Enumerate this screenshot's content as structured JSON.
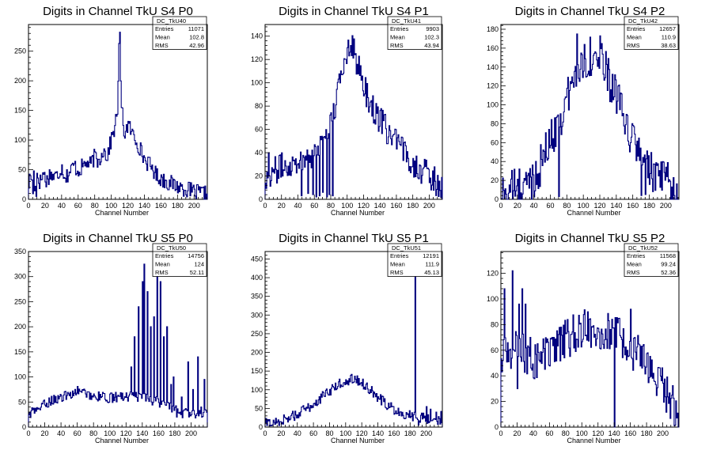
{
  "chart_data": [
    {
      "type": "histogram",
      "title": "Digits in Channel TkU S4 P0",
      "xlabel": "Channel Number",
      "ylabel": "",
      "xlim": [
        0,
        216
      ],
      "ylim": [
        0,
        295
      ],
      "xticks": [
        0,
        20,
        40,
        60,
        80,
        100,
        120,
        140,
        160,
        180,
        200
      ],
      "yticks": [
        0,
        50,
        100,
        150,
        200,
        250
      ],
      "stats": {
        "name": "DC_TkU40",
        "rows": [
          {
            "label": "Entries",
            "value": "11071"
          },
          {
            "label": "Mean",
            "value": "102.8"
          },
          {
            "label": "RMS",
            "value": "42.96"
          }
        ]
      },
      "profile": [
        [
          0,
          22
        ],
        [
          3,
          45
        ],
        [
          6,
          8
        ],
        [
          10,
          46
        ],
        [
          14,
          28
        ],
        [
          18,
          45
        ],
        [
          22,
          30
        ],
        [
          26,
          44
        ],
        [
          30,
          38
        ],
        [
          35,
          40
        ],
        [
          40,
          55
        ],
        [
          45,
          38
        ],
        [
          50,
          46
        ],
        [
          55,
          58
        ],
        [
          60,
          48
        ],
        [
          65,
          55
        ],
        [
          70,
          62
        ],
        [
          75,
          58
        ],
        [
          80,
          72
        ],
        [
          85,
          62
        ],
        [
          90,
          85
        ],
        [
          95,
          72
        ],
        [
          100,
          100
        ],
        [
          104,
          120
        ],
        [
          106,
          135
        ],
        [
          108,
          160
        ],
        [
          110,
          282
        ],
        [
          112,
          160
        ],
        [
          114,
          135
        ],
        [
          116,
          110
        ],
        [
          120,
          126
        ],
        [
          124,
          115
        ],
        [
          130,
          100
        ],
        [
          135,
          85
        ],
        [
          140,
          68
        ],
        [
          145,
          60
        ],
        [
          150,
          52
        ],
        [
          155,
          40
        ],
        [
          160,
          35
        ],
        [
          170,
          28
        ],
        [
          180,
          22
        ],
        [
          190,
          18
        ],
        [
          200,
          12
        ],
        [
          210,
          10
        ],
        [
          216,
          8
        ]
      ],
      "spikes": [
        [
          6,
          48
        ],
        [
          9,
          5
        ],
        [
          110,
          282
        ]
      ],
      "noise": 14
    },
    {
      "type": "histogram",
      "title": "Digits in Channel TkU S4 P1",
      "xlabel": "Channel Number",
      "ylabel": "",
      "xlim": [
        0,
        216
      ],
      "ylim": [
        0,
        150
      ],
      "xticks": [
        0,
        20,
        40,
        60,
        80,
        100,
        120,
        140,
        160,
        180,
        200
      ],
      "yticks": [
        0,
        20,
        40,
        60,
        80,
        100,
        120,
        140
      ],
      "stats": {
        "name": "DC_TkU41",
        "rows": [
          {
            "label": "Entries",
            "value": "9903"
          },
          {
            "label": "Mean",
            "value": "102.3"
          },
          {
            "label": "RMS",
            "value": "43.94"
          }
        ]
      },
      "profile": [
        [
          0,
          18
        ],
        [
          10,
          24
        ],
        [
          20,
          28
        ],
        [
          30,
          30
        ],
        [
          40,
          34
        ],
        [
          50,
          36
        ],
        [
          60,
          40
        ],
        [
          70,
          52
        ],
        [
          80,
          66
        ],
        [
          85,
          78
        ],
        [
          90,
          96
        ],
        [
          95,
          115
        ],
        [
          100,
          128
        ],
        [
          104,
          138
        ],
        [
          108,
          130
        ],
        [
          112,
          116
        ],
        [
          118,
          104
        ],
        [
          124,
          90
        ],
        [
          130,
          80
        ],
        [
          140,
          68
        ],
        [
          150,
          58
        ],
        [
          160,
          48
        ],
        [
          170,
          40
        ],
        [
          180,
          32
        ],
        [
          190,
          26
        ],
        [
          200,
          20
        ],
        [
          210,
          14
        ],
        [
          216,
          10
        ]
      ],
      "spikes": [
        [
          4,
          40
        ],
        [
          44,
          3
        ],
        [
          52,
          5
        ],
        [
          58,
          4
        ],
        [
          62,
          2
        ],
        [
          66,
          3
        ],
        [
          70,
          6
        ],
        [
          75,
          2
        ],
        [
          78,
          4
        ],
        [
          82,
          3
        ]
      ],
      "noise": 12
    },
    {
      "type": "histogram",
      "title": "Digits in Channel TkU S4 P2",
      "xlabel": "Channel Number",
      "ylabel": "",
      "xlim": [
        0,
        216
      ],
      "ylim": [
        0,
        185
      ],
      "xticks": [
        0,
        20,
        40,
        60,
        80,
        100,
        120,
        140,
        160,
        180,
        200
      ],
      "yticks": [
        0,
        20,
        40,
        60,
        80,
        100,
        120,
        140,
        160,
        180
      ],
      "stats": {
        "name": "DC_TkU42",
        "rows": [
          {
            "label": "Entries",
            "value": "12657"
          },
          {
            "label": "Mean",
            "value": "110.9"
          },
          {
            "label": "RMS",
            "value": "38.63"
          }
        ]
      },
      "profile": [
        [
          0,
          5
        ],
        [
          10,
          10
        ],
        [
          20,
          12
        ],
        [
          30,
          15
        ],
        [
          40,
          22
        ],
        [
          50,
          40
        ],
        [
          60,
          62
        ],
        [
          70,
          82
        ],
        [
          80,
          105
        ],
        [
          90,
          130
        ],
        [
          100,
          148
        ],
        [
          110,
          152
        ],
        [
          120,
          148
        ],
        [
          130,
          130
        ],
        [
          140,
          110
        ],
        [
          150,
          80
        ],
        [
          160,
          62
        ],
        [
          170,
          48
        ],
        [
          180,
          30
        ],
        [
          190,
          22
        ],
        [
          200,
          18
        ],
        [
          210,
          14
        ],
        [
          216,
          5
        ]
      ],
      "spikes": [
        [
          70,
          3
        ],
        [
          92,
          175
        ],
        [
          120,
          173
        ],
        [
          170,
          4
        ],
        [
          175,
          5
        ],
        [
          210,
          4
        ]
      ],
      "noise": 22
    },
    {
      "type": "histogram",
      "title": "Digits in Channel TkU S5 P0",
      "xlabel": "Channel Number",
      "ylabel": "",
      "xlim": [
        0,
        220
      ],
      "ylim": [
        0,
        350
      ],
      "xticks": [
        0,
        20,
        40,
        60,
        80,
        100,
        120,
        140,
        160,
        180,
        200
      ],
      "yticks": [
        0,
        50,
        100,
        150,
        200,
        250,
        300,
        350
      ],
      "stats": {
        "name": "DC_TkU50",
        "rows": [
          {
            "label": "Entries",
            "value": "14756"
          },
          {
            "label": "Mean",
            "value": "124"
          },
          {
            "label": "RMS",
            "value": "52.11"
          }
        ]
      },
      "profile": [
        [
          0,
          25
        ],
        [
          10,
          35
        ],
        [
          20,
          45
        ],
        [
          30,
          55
        ],
        [
          40,
          58
        ],
        [
          50,
          65
        ],
        [
          60,
          72
        ],
        [
          70,
          68
        ],
        [
          80,
          62
        ],
        [
          90,
          60
        ],
        [
          100,
          58
        ],
        [
          110,
          60
        ],
        [
          120,
          62
        ],
        [
          130,
          60
        ],
        [
          140,
          58
        ],
        [
          150,
          55
        ],
        [
          160,
          50
        ],
        [
          170,
          45
        ],
        [
          180,
          35
        ],
        [
          190,
          28
        ],
        [
          200,
          25
        ],
        [
          210,
          30
        ],
        [
          220,
          28
        ]
      ],
      "spikes": [
        [
          126,
          120
        ],
        [
          130,
          180
        ],
        [
          135,
          240
        ],
        [
          140,
          290
        ],
        [
          142,
          325
        ],
        [
          146,
          270
        ],
        [
          150,
          200
        ],
        [
          154,
          220
        ],
        [
          158,
          300
        ],
        [
          162,
          290
        ],
        [
          166,
          180
        ],
        [
          170,
          200
        ],
        [
          175,
          85
        ],
        [
          178,
          100
        ],
        [
          182,
          20
        ],
        [
          188,
          60
        ],
        [
          196,
          130
        ],
        [
          202,
          75
        ],
        [
          208,
          140
        ],
        [
          212,
          40
        ],
        [
          216,
          95
        ]
      ],
      "noise": 10
    },
    {
      "type": "histogram",
      "title": "Digits in Channel TkU S5 P1",
      "xlabel": "Channel Number",
      "ylabel": "",
      "xlim": [
        0,
        220
      ],
      "ylim": [
        0,
        470
      ],
      "xticks": [
        0,
        20,
        40,
        60,
        80,
        100,
        120,
        140,
        160,
        180,
        200
      ],
      "yticks": [
        0,
        50,
        100,
        150,
        200,
        250,
        300,
        350,
        400,
        450
      ],
      "stats": {
        "name": "DC_TkU51",
        "rows": [
          {
            "label": "Entries",
            "value": "12191"
          },
          {
            "label": "Mean",
            "value": "111.9"
          },
          {
            "label": "RMS",
            "value": "45.13"
          }
        ]
      },
      "profile": [
        [
          0,
          10
        ],
        [
          10,
          12
        ],
        [
          20,
          18
        ],
        [
          30,
          25
        ],
        [
          40,
          35
        ],
        [
          50,
          48
        ],
        [
          60,
          60
        ],
        [
          70,
          80
        ],
        [
          80,
          95
        ],
        [
          90,
          112
        ],
        [
          100,
          125
        ],
        [
          110,
          130
        ],
        [
          120,
          120
        ],
        [
          130,
          100
        ],
        [
          140,
          80
        ],
        [
          150,
          62
        ],
        [
          160,
          48
        ],
        [
          170,
          38
        ],
        [
          180,
          32
        ],
        [
          190,
          28
        ],
        [
          200,
          24
        ],
        [
          210,
          20
        ],
        [
          220,
          18
        ]
      ],
      "spikes": [
        [
          186,
          440
        ],
        [
          190,
          5
        ],
        [
          200,
          55
        ],
        [
          205,
          48
        ],
        [
          212,
          40
        ],
        [
          218,
          42
        ]
      ],
      "noise": 14
    },
    {
      "type": "histogram",
      "title": "Digits in Channel TkU S5 P2",
      "xlabel": "Channel Number",
      "ylabel": "",
      "xlim": [
        0,
        220
      ],
      "ylim": [
        0,
        137
      ],
      "xticks": [
        0,
        20,
        40,
        60,
        80,
        100,
        120,
        140,
        160,
        180,
        200
      ],
      "yticks": [
        0,
        20,
        40,
        60,
        80,
        100,
        120
      ],
      "stats": {
        "name": "DC_TkU52",
        "rows": [
          {
            "label": "Entries",
            "value": "11568"
          },
          {
            "label": "Mean",
            "value": "99.24"
          },
          {
            "label": "RMS",
            "value": "52.36"
          }
        ]
      },
      "profile": [
        [
          0,
          50
        ],
        [
          10,
          60
        ],
        [
          20,
          62
        ],
        [
          30,
          55
        ],
        [
          40,
          52
        ],
        [
          50,
          55
        ],
        [
          60,
          58
        ],
        [
          70,
          62
        ],
        [
          80,
          68
        ],
        [
          90,
          72
        ],
        [
          100,
          75
        ],
        [
          110,
          78
        ],
        [
          120,
          76
        ],
        [
          130,
          74
        ],
        [
          140,
          72
        ],
        [
          150,
          68
        ],
        [
          160,
          62
        ],
        [
          170,
          56
        ],
        [
          180,
          48
        ],
        [
          190,
          38
        ],
        [
          200,
          30
        ],
        [
          210,
          22
        ],
        [
          220,
          5
        ]
      ],
      "spikes": [
        [
          4,
          108
        ],
        [
          10,
          60
        ],
        [
          14,
          122
        ],
        [
          20,
          30
        ],
        [
          22,
          96
        ],
        [
          26,
          108
        ],
        [
          30,
          96
        ],
        [
          36,
          70
        ],
        [
          140,
          0
        ],
        [
          160,
          92
        ]
      ],
      "noise": 16
    }
  ]
}
